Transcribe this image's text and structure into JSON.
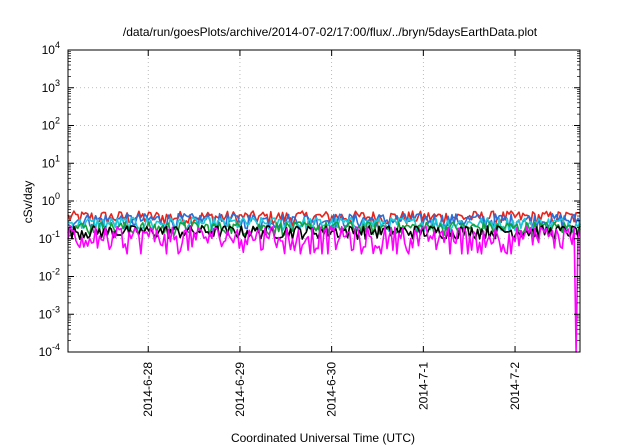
{
  "chart_data": {
    "type": "line",
    "title": "/data/run/goesPlots/archive/2014-07-02/17:00/flux/../bryn/5daysEarthData.plot",
    "xlabel": "Coordinated Universal Time (UTC)",
    "ylabel": "cSv/day",
    "yscale": "log",
    "ylim": [
      0.0001,
      10000
    ],
    "xlim": [
      "2014-06-27 03:00",
      "2014-07-02 17:00"
    ],
    "grid": true,
    "y_ticks": [
      {
        "value": 0.0001,
        "base": "10",
        "exp": "-4"
      },
      {
        "value": 0.001,
        "base": "10",
        "exp": "-3"
      },
      {
        "value": 0.01,
        "base": "10",
        "exp": "-2"
      },
      {
        "value": 0.1,
        "base": "10",
        "exp": "-1"
      },
      {
        "value": 1,
        "base": "10",
        "exp": "0"
      },
      {
        "value": 10,
        "base": "10",
        "exp": "1"
      },
      {
        "value": 100,
        "base": "10",
        "exp": "2"
      },
      {
        "value": 1000,
        "base": "10",
        "exp": "3"
      },
      {
        "value": 10000,
        "base": "10",
        "exp": "4"
      }
    ],
    "x_ticks": [
      {
        "value": "2014-06-28",
        "label": "2014-6-28"
      },
      {
        "value": "2014-06-29",
        "label": "2014-6-29"
      },
      {
        "value": "2014-06-30",
        "label": "2014-6-30"
      },
      {
        "value": "2014-07-01",
        "label": "2014-7-1"
      },
      {
        "value": "2014-07-02",
        "label": "2014-7-2"
      }
    ],
    "series": [
      {
        "color": "#e8231c",
        "level": 0.38,
        "jitter": 0.18
      },
      {
        "color": "#2a6fd8",
        "level": 0.32,
        "jitter": 0.16
      },
      {
        "color": "#1fc8d8",
        "level": 0.26,
        "jitter": 0.12
      },
      {
        "color": "#14a23c",
        "level": 0.2,
        "jitter": 0.09
      },
      {
        "color": "#000000",
        "level": 0.16,
        "jitter": 0.07
      },
      {
        "color": "#ff00ff",
        "level": 0.12,
        "jitter": 0.1,
        "dip": 0.06,
        "drop_at": "2014-07-02 15:40",
        "drop_to": 0.0001
      }
    ]
  }
}
